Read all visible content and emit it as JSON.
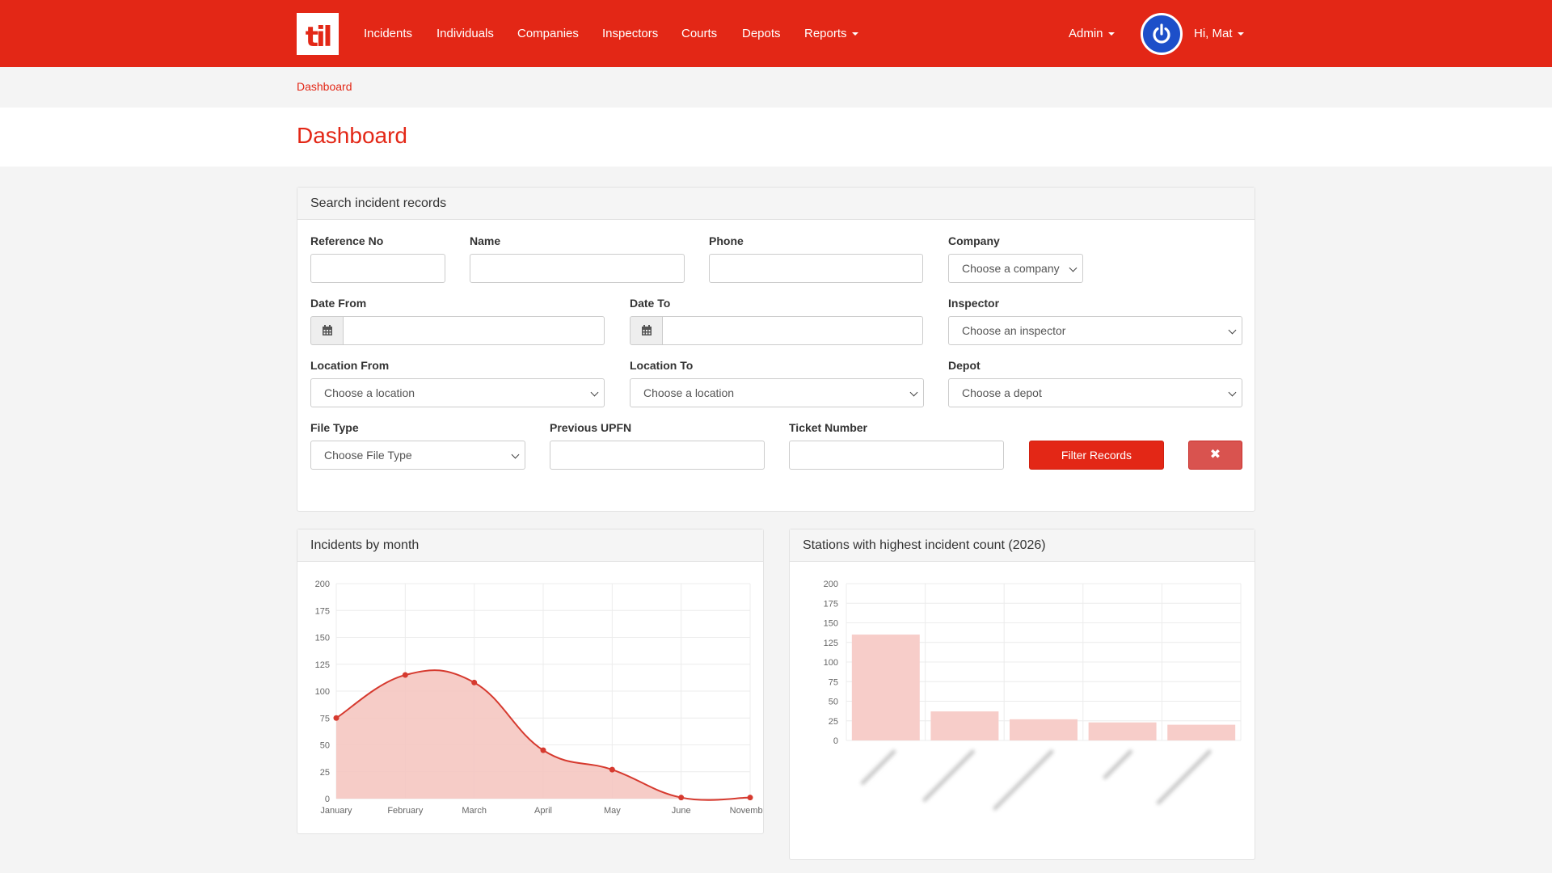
{
  "nav": {
    "logo_text": "til",
    "links": [
      "Incidents",
      "Individuals",
      "Companies",
      "Inspectors",
      "Courts",
      "Depots",
      "Reports"
    ],
    "admin_label": "Admin",
    "greeting": "Hi, Mat"
  },
  "breadcrumb": "Dashboard",
  "page_title": "Dashboard",
  "search": {
    "heading": "Search incident records",
    "reference_no": {
      "label": "Reference No",
      "value": ""
    },
    "name": {
      "label": "Name",
      "value": ""
    },
    "phone": {
      "label": "Phone",
      "value": ""
    },
    "company": {
      "label": "Company",
      "selected": "Choose a company"
    },
    "date_from": {
      "label": "Date From",
      "value": ""
    },
    "date_to": {
      "label": "Date To",
      "value": ""
    },
    "inspector": {
      "label": "Inspector",
      "selected": "Choose an inspector"
    },
    "location_from": {
      "label": "Location From",
      "selected": "Choose a location"
    },
    "location_to": {
      "label": "Location To",
      "selected": "Choose a location"
    },
    "depot": {
      "label": "Depot",
      "selected": "Choose a depot"
    },
    "file_type": {
      "label": "File Type",
      "selected": "Choose File Type"
    },
    "previous_upfn": {
      "label": "Previous UPFN",
      "value": ""
    },
    "ticket_number": {
      "label": "Ticket Number",
      "value": ""
    },
    "filter_button": "Filter Records",
    "clear_button": "✖"
  },
  "colors": {
    "brand": "#e32716",
    "chart_line": "#d63a2f",
    "chart_fill": "#f5c6c1",
    "bar_fill": "#f7cdc9",
    "power_button": "#1d4fc9"
  },
  "chart_data": [
    {
      "type": "area",
      "title": "Incidents by month",
      "categories": [
        "January",
        "February",
        "March",
        "April",
        "May",
        "June",
        "November"
      ],
      "values": [
        75,
        115,
        108,
        45,
        27,
        1,
        1
      ],
      "yticks": [
        "0",
        "25",
        "50",
        "75",
        "100",
        "125",
        "150",
        "175",
        "200"
      ],
      "ylim": [
        0,
        200
      ],
      "grid": true
    },
    {
      "type": "bar",
      "title": "Stations with highest incident count (2026)",
      "categories": [
        "",
        "",
        "",
        "",
        ""
      ],
      "values": [
        135,
        37,
        27,
        23,
        20
      ],
      "yticks": [
        "0",
        "25",
        "50",
        "75",
        "100",
        "125",
        "150",
        "175",
        "200"
      ],
      "ylim": [
        0,
        200
      ],
      "grid": true
    }
  ]
}
